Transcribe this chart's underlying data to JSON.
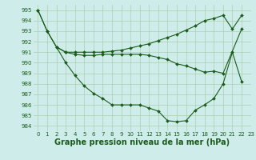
{
  "line1": {
    "x": [
      0,
      1,
      2,
      3,
      4,
      5,
      6,
      7,
      8,
      9,
      10,
      11,
      12,
      13,
      14,
      15,
      16,
      17,
      18,
      19,
      20,
      21,
      22
    ],
    "y": [
      995.0,
      993.0,
      991.5,
      991.0,
      991.0,
      991.0,
      991.0,
      991.0,
      991.1,
      991.2,
      991.4,
      991.6,
      991.8,
      992.1,
      992.4,
      992.7,
      993.1,
      993.5,
      994.0,
      994.2,
      994.5,
      993.2,
      994.5
    ],
    "color": "#1a5c1a",
    "marker": "D",
    "markersize": 2,
    "linewidth": 0.8
  },
  "line2": {
    "x": [
      2,
      3,
      4,
      5,
      6,
      7,
      8,
      9,
      10,
      11,
      12,
      13,
      14,
      15,
      16,
      17,
      18,
      19,
      20,
      22
    ],
    "y": [
      991.5,
      991.0,
      990.8,
      990.7,
      990.7,
      990.8,
      990.8,
      990.8,
      990.8,
      990.8,
      990.7,
      990.5,
      990.3,
      989.9,
      989.7,
      989.4,
      989.1,
      989.2,
      989.0,
      993.2
    ],
    "color": "#1a5c1a",
    "marker": "D",
    "markersize": 2,
    "linewidth": 0.8
  },
  "line3": {
    "x": [
      0,
      1,
      3,
      4,
      5,
      6,
      7,
      8,
      9,
      10,
      11,
      12,
      13,
      14,
      15,
      16,
      17,
      18,
      19,
      20,
      21,
      22
    ],
    "y": [
      995.0,
      993.0,
      990.0,
      988.8,
      987.8,
      987.1,
      986.6,
      986.0,
      986.0,
      986.0,
      986.0,
      985.7,
      985.4,
      984.5,
      984.4,
      984.5,
      985.5,
      986.0,
      986.6,
      988.0,
      991.0,
      988.2
    ],
    "color": "#1a5c1a",
    "marker": "D",
    "markersize": 2,
    "linewidth": 0.8
  },
  "background_color": "#ceecea",
  "grid_color": "#aaccaa",
  "ylim": [
    983.5,
    995.5
  ],
  "xlim": [
    -0.5,
    23
  ],
  "yticks": [
    984,
    985,
    986,
    987,
    988,
    989,
    990,
    991,
    992,
    993,
    994,
    995
  ],
  "xticks": [
    0,
    1,
    2,
    3,
    4,
    5,
    6,
    7,
    8,
    9,
    10,
    11,
    12,
    13,
    14,
    15,
    16,
    17,
    18,
    19,
    20,
    21,
    22,
    23
  ],
  "xlabel": "Graphe pression niveau de la mer (hPa)",
  "tick_color": "#1a5c1a",
  "label_color": "#1a5c1a",
  "tick_fontsize": 5.0,
  "xlabel_fontsize": 7.0
}
